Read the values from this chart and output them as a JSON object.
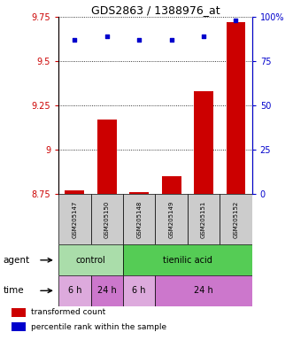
{
  "title": "GDS2863 / 1388976_at",
  "samples": [
    "GSM205147",
    "GSM205150",
    "GSM205148",
    "GSM205149",
    "GSM205151",
    "GSM205152"
  ],
  "red_values": [
    8.77,
    9.17,
    8.76,
    8.85,
    9.33,
    9.72
  ],
  "blue_values": [
    87,
    89,
    87,
    87,
    89,
    98
  ],
  "ylim_left": [
    8.75,
    9.75
  ],
  "ylim_right": [
    0,
    100
  ],
  "yticks_left": [
    8.75,
    9.0,
    9.25,
    9.5,
    9.75
  ],
  "ytick_labels_left": [
    "8.75",
    "9",
    "9.25",
    "9.5",
    "9.75"
  ],
  "yticks_right": [
    0,
    25,
    50,
    75,
    100
  ],
  "ytick_labels_right": [
    "0",
    "25",
    "50",
    "75",
    "100%"
  ],
  "bar_color": "#cc0000",
  "dot_color": "#0000cc",
  "bar_bottom": 8.75,
  "agent_groups": [
    {
      "label": "control",
      "start": 0,
      "end": 2,
      "color": "#aaddaa"
    },
    {
      "label": "tienilic acid",
      "start": 2,
      "end": 6,
      "color": "#55cc55"
    }
  ],
  "time_groups": [
    {
      "label": "6 h",
      "start": 0,
      "end": 1,
      "color": "#ddaadd"
    },
    {
      "label": "24 h",
      "start": 1,
      "end": 2,
      "color": "#cc77cc"
    },
    {
      "label": "6 h",
      "start": 2,
      "end": 3,
      "color": "#ddaadd"
    },
    {
      "label": "24 h",
      "start": 3,
      "end": 6,
      "color": "#cc77cc"
    }
  ],
  "legend_items": [
    {
      "color": "#cc0000",
      "label": "transformed count"
    },
    {
      "color": "#0000cc",
      "label": "percentile rank within the sample"
    }
  ],
  "title_fontsize": 9,
  "tick_fontsize": 7,
  "sample_fontsize": 5,
  "group_fontsize": 7,
  "legend_fontsize": 6.5,
  "side_label_fontsize": 7.5
}
